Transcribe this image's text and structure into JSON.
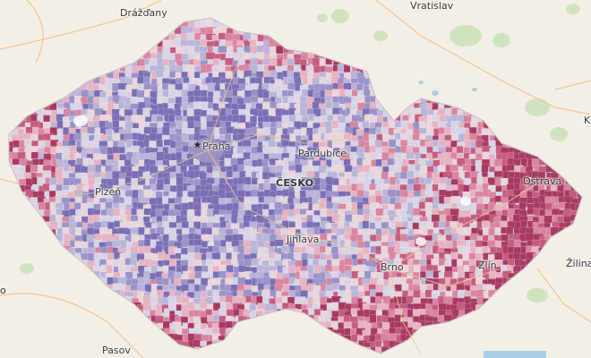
{
  "map": {
    "country_label": "ČESKO",
    "labels": {
      "drazdany": "Drážďany",
      "vratislav": "Vratislav",
      "praha": "Praha",
      "pardubice": "Pardubice",
      "plzen": "Plzeň",
      "jihlava": "Jihlava",
      "brno": "Brno",
      "zlin": "Zlín",
      "ostrava": "Ostrava",
      "zilina": "Žilina",
      "pasov": "Pasov",
      "edge_k": "K",
      "edge_o": "o"
    },
    "colors": {
      "background": "#f3efe7",
      "forest": "#cfe3bf",
      "water": "#a9cfe8",
      "road": "#f2c48d",
      "border": "#c9bcc5",
      "palette": [
        "#7a6fb5",
        "#9a93c8",
        "#b9b5d8",
        "#d8d4e6",
        "#e8d6dc",
        "#e6b3c2",
        "#d985a0",
        "#c45d80",
        "#a73a63"
      ]
    }
  }
}
